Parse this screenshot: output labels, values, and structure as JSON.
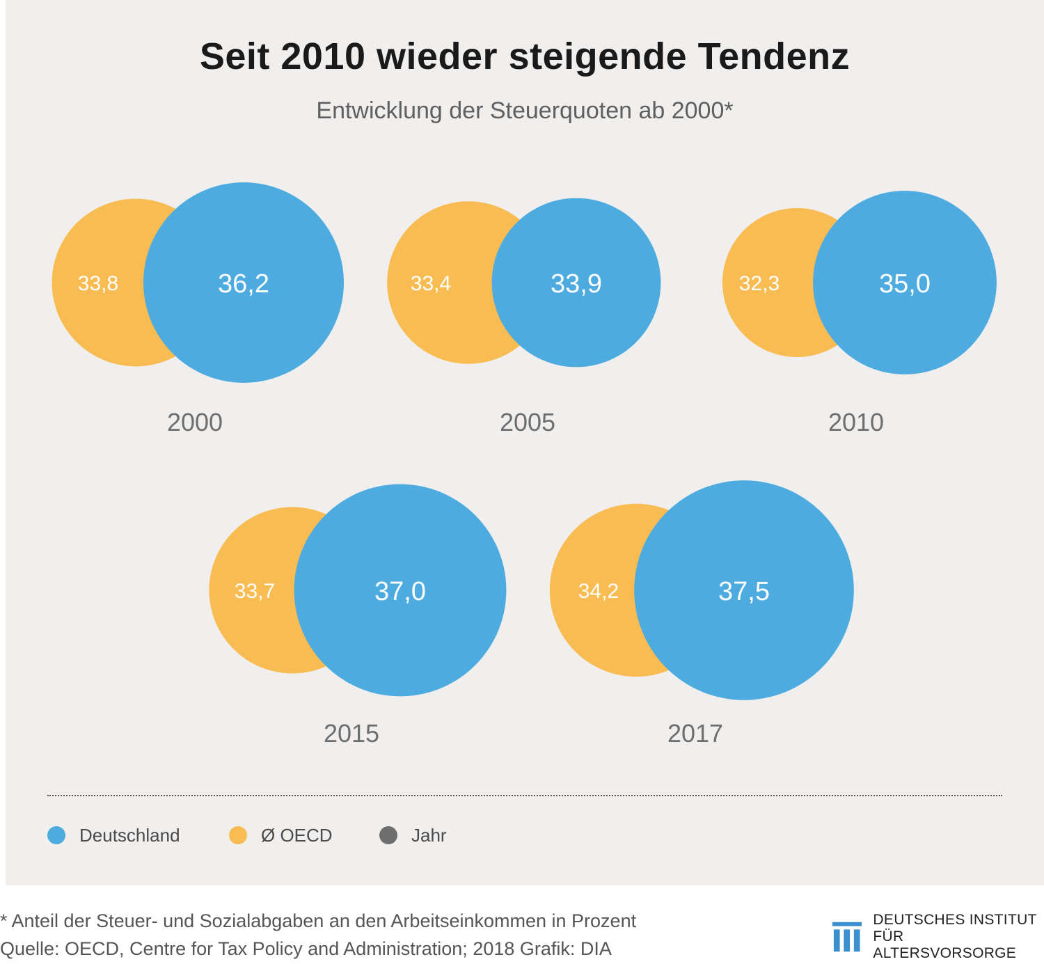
{
  "title": "Seit 2010 wieder steigende Tendenz",
  "subtitle": "Entwicklung der Steuerquoten ab 2000*",
  "colors": {
    "deutschland": "#4eabe0",
    "oecd": "#f9bc52",
    "jahr": "#6e6e6e",
    "background": "#f1efed"
  },
  "chart_data": {
    "type": "bubble",
    "title": "Seit 2010 wieder steigende Tendenz",
    "subtitle": "Entwicklung der Steuerquoten ab 2000*",
    "categories": [
      "2000",
      "2005",
      "2010",
      "2015",
      "2017"
    ],
    "series": [
      {
        "name": "Deutschland",
        "values": [
          36.2,
          33.9,
          35.0,
          37.0,
          37.5
        ],
        "labels": [
          "36,2",
          "33,9",
          "35,0",
          "37,0",
          "37,5"
        ]
      },
      {
        "name": "Ø OECD",
        "values": [
          33.8,
          33.4,
          32.3,
          33.7,
          34.2
        ],
        "labels": [
          "33,8",
          "33,4",
          "32,3",
          "33,7",
          "34,2"
        ]
      }
    ]
  },
  "legend": [
    {
      "label": "Deutschland",
      "color": "#4eabe0"
    },
    {
      "label": "Ø OECD",
      "color": "#f9bc52"
    },
    {
      "label": "Jahr",
      "color": "#6e6e6e"
    }
  ],
  "footnotes": {
    "line1": "* Anteil der Steuer- und Sozialabgaben an den Arbeitseinkommen in Prozent",
    "line2": "Quelle: OECD, Centre for Tax Policy and Administration; 2018  Grafik: DIA"
  },
  "logo": {
    "line1": "DEUTSCHES INSTITUT",
    "line2": "FÜR ALTERSVORSORGE"
  }
}
